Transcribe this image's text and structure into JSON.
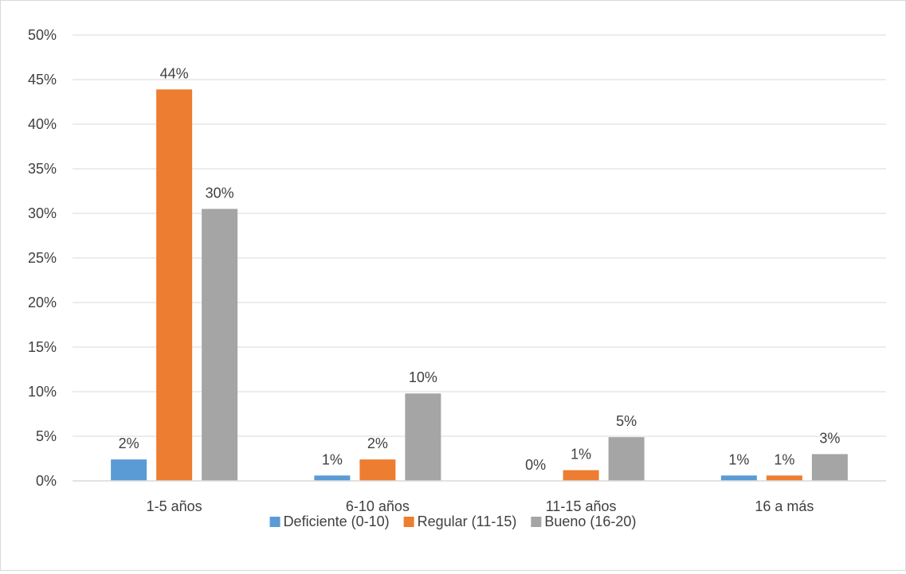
{
  "chart_data": {
    "type": "bar",
    "title": "",
    "xlabel": "",
    "ylabel": "",
    "categories": [
      "1-5 años",
      "6-10 años",
      "11-15 años",
      "16 a más"
    ],
    "ylim": [
      0,
      50
    ],
    "yticks": [
      0,
      5,
      10,
      15,
      20,
      25,
      30,
      35,
      40,
      45,
      50
    ],
    "ytick_labels": [
      "0%",
      "5%",
      "10%",
      "15%",
      "20%",
      "25%",
      "30%",
      "35%",
      "40%",
      "45%",
      "50%"
    ],
    "grid": true,
    "legend_position": "bottom",
    "series": [
      {
        "name": "Deficiente (0-10)",
        "color": "#5b9bd5",
        "values": [
          2.4,
          0.6,
          0,
          0.6
        ],
        "labels": [
          "2%",
          "1%",
          "0%",
          "1%"
        ]
      },
      {
        "name": "Regular (11-15)",
        "color": "#ed7d31",
        "values": [
          43.9,
          2.4,
          1.2,
          0.6
        ],
        "labels": [
          "44%",
          "2%",
          "1%",
          "1%"
        ]
      },
      {
        "name": "Bueno (16-20)",
        "color": "#a5a5a5",
        "values": [
          30.5,
          9.8,
          4.9,
          3.0
        ],
        "labels": [
          "30%",
          "10%",
          "5%",
          "3%"
        ]
      }
    ]
  }
}
